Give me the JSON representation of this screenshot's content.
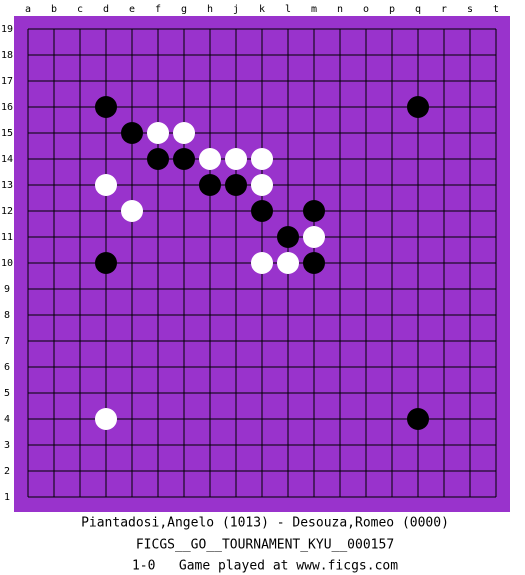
{
  "board": {
    "columns": [
      "a",
      "b",
      "c",
      "d",
      "e",
      "f",
      "g",
      "h",
      "j",
      "k",
      "l",
      "m",
      "n",
      "o",
      "p",
      "q",
      "r",
      "s",
      "t"
    ],
    "rows": [
      "19",
      "18",
      "17",
      "16",
      "15",
      "14",
      "13",
      "12",
      "11",
      "10",
      "9",
      "8",
      "7",
      "6",
      "5",
      "4",
      "3",
      "2",
      "1"
    ],
    "stones": [
      {
        "color": "black",
        "point": "d16"
      },
      {
        "color": "black",
        "point": "q16"
      },
      {
        "color": "black",
        "point": "e15"
      },
      {
        "color": "white",
        "point": "f15"
      },
      {
        "color": "white",
        "point": "g15"
      },
      {
        "color": "black",
        "point": "f14"
      },
      {
        "color": "black",
        "point": "g14"
      },
      {
        "color": "white",
        "point": "h14"
      },
      {
        "color": "white",
        "point": "j14"
      },
      {
        "color": "white",
        "point": "k14"
      },
      {
        "color": "white",
        "point": "d13"
      },
      {
        "color": "black",
        "point": "h13"
      },
      {
        "color": "black",
        "point": "j13"
      },
      {
        "color": "white",
        "point": "k13"
      },
      {
        "color": "white",
        "point": "e12"
      },
      {
        "color": "black",
        "point": "k12"
      },
      {
        "color": "black",
        "point": "m12"
      },
      {
        "color": "black",
        "point": "l11"
      },
      {
        "color": "white",
        "point": "m11"
      },
      {
        "color": "black",
        "point": "d10"
      },
      {
        "color": "white",
        "point": "k10"
      },
      {
        "color": "white",
        "point": "l10"
      },
      {
        "color": "black",
        "point": "m10"
      },
      {
        "color": "white",
        "point": "d4"
      },
      {
        "color": "black",
        "point": "q4"
      }
    ]
  },
  "footer": {
    "players": "Piantadosi,Angelo (1013) - Desouza,Romeo (0000)",
    "event": "FICGS__GO__TOURNAMENT_KYU__000157",
    "result": "1-0   Game played at www.ficgs.com"
  }
}
